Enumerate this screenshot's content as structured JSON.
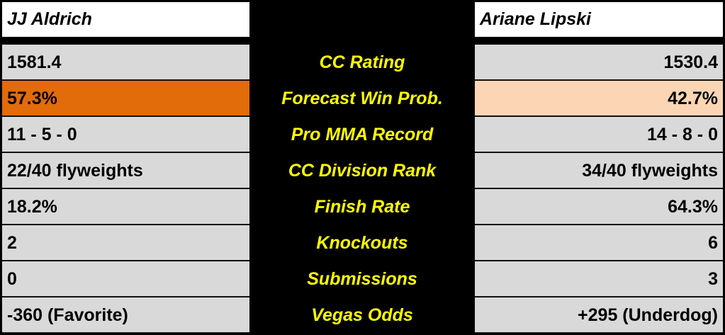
{
  "fighters": {
    "left": "JJ Aldrich",
    "right": "Ariane Lipski"
  },
  "colors": {
    "favorite_highlight": "#e26b0a",
    "underdog_highlight": "#fcd5b4",
    "label_text": "#ffff00",
    "cell_bg": "#d9d9d9"
  },
  "rows": [
    {
      "label": "CC Rating",
      "left": "1581.4",
      "right": "1530.4"
    },
    {
      "label": "Forecast Win Prob.",
      "left": "57.3%",
      "right": "42.7%"
    },
    {
      "label": "Pro MMA Record",
      "left": "11 - 5 - 0",
      "right": "14 - 8 - 0"
    },
    {
      "label": "CC Division Rank",
      "left": "22/40 flyweights",
      "right": "34/40 flyweights"
    },
    {
      "label": "Finish Rate",
      "left": "18.2%",
      "right": "64.3%"
    },
    {
      "label": "Knockouts",
      "left": "2",
      "right": "6"
    },
    {
      "label": "Submissions",
      "left": "0",
      "right": "3"
    },
    {
      "label": "Vegas Odds",
      "left": "-360 (Favorite)",
      "right": "+295 (Underdog)"
    }
  ]
}
